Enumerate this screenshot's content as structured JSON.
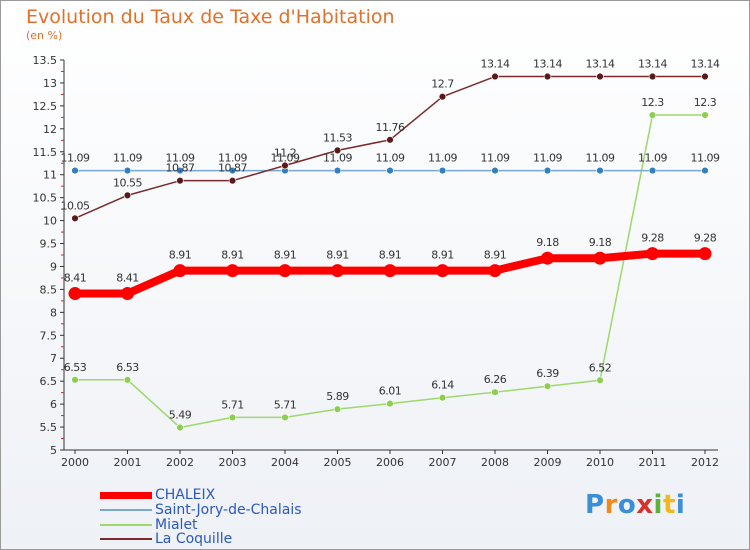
{
  "title": "Evolution du Taux de Taxe d'Habitation",
  "subtitle": "(en %)",
  "logo": "Proxiti",
  "chart_data": {
    "type": "line",
    "x": [
      "2000",
      "2001",
      "2002",
      "2003",
      "2004",
      "2005",
      "2006",
      "2007",
      "2008",
      "2009",
      "2010",
      "2011",
      "2012"
    ],
    "ylim": [
      5,
      13.5
    ],
    "yticks": [
      "5",
      "5.5",
      "6",
      "6.5",
      "7",
      "7.5",
      "8",
      "8.5",
      "9",
      "9.5",
      "10",
      "10.5",
      "11",
      "11.5",
      "12",
      "12.5",
      "13",
      "13.5"
    ],
    "grid": false,
    "series": [
      {
        "name": "CHALEIX",
        "color": "#ff0000",
        "marker": "#ff0000",
        "values": [
          8.41,
          8.41,
          8.91,
          8.91,
          8.91,
          8.91,
          8.91,
          8.91,
          8.91,
          9.18,
          9.18,
          9.28,
          9.28
        ],
        "labels": [
          "8.41",
          "8.41",
          "8.91",
          "8.91",
          "8.91",
          "8.91",
          "8.91",
          "8.91",
          "8.91",
          "9.18",
          "9.18",
          "9.28",
          "9.28"
        ]
      },
      {
        "name": "Saint-Jory-de-Chalais",
        "color": "#7aa6d2",
        "marker": "#2f7fc1",
        "values": [
          11.09,
          11.09,
          11.09,
          11.09,
          11.09,
          11.09,
          11.09,
          11.09,
          11.09,
          11.09,
          11.09,
          11.09,
          11.09
        ],
        "labels": [
          "11.09",
          "11.09",
          "11.09",
          "11.09",
          "11.09",
          "11.09",
          "11.09",
          "11.09",
          "11.09",
          "11.09",
          "11.09",
          "11.09",
          "11.09"
        ]
      },
      {
        "name": "Mialet",
        "color": "#9ed86a",
        "marker": "#8acf4e",
        "values": [
          6.53,
          6.53,
          5.49,
          5.71,
          5.71,
          5.89,
          6.01,
          6.14,
          6.26,
          6.39,
          6.52,
          12.3,
          12.3
        ],
        "labels": [
          "6.53",
          "6.53",
          "5.49",
          "5.71",
          "5.71",
          "5.89",
          "6.01",
          "6.14",
          "6.26",
          "6.39",
          "6.52",
          "12.3",
          "12.3"
        ]
      },
      {
        "name": "La Coquille",
        "color": "#7a2a2a",
        "marker": "#5a1a1a",
        "values": [
          10.05,
          10.55,
          10.87,
          10.87,
          11.2,
          11.53,
          11.76,
          12.7,
          13.14,
          13.14,
          13.14,
          13.14,
          13.14
        ],
        "labels": [
          "10.05",
          "10.55",
          "10.87",
          "10.87",
          "11.2",
          "11.53",
          "11.76",
          "12.7",
          "13.14",
          "13.14",
          "13.14",
          "13.14",
          "13.14"
        ]
      }
    ]
  }
}
